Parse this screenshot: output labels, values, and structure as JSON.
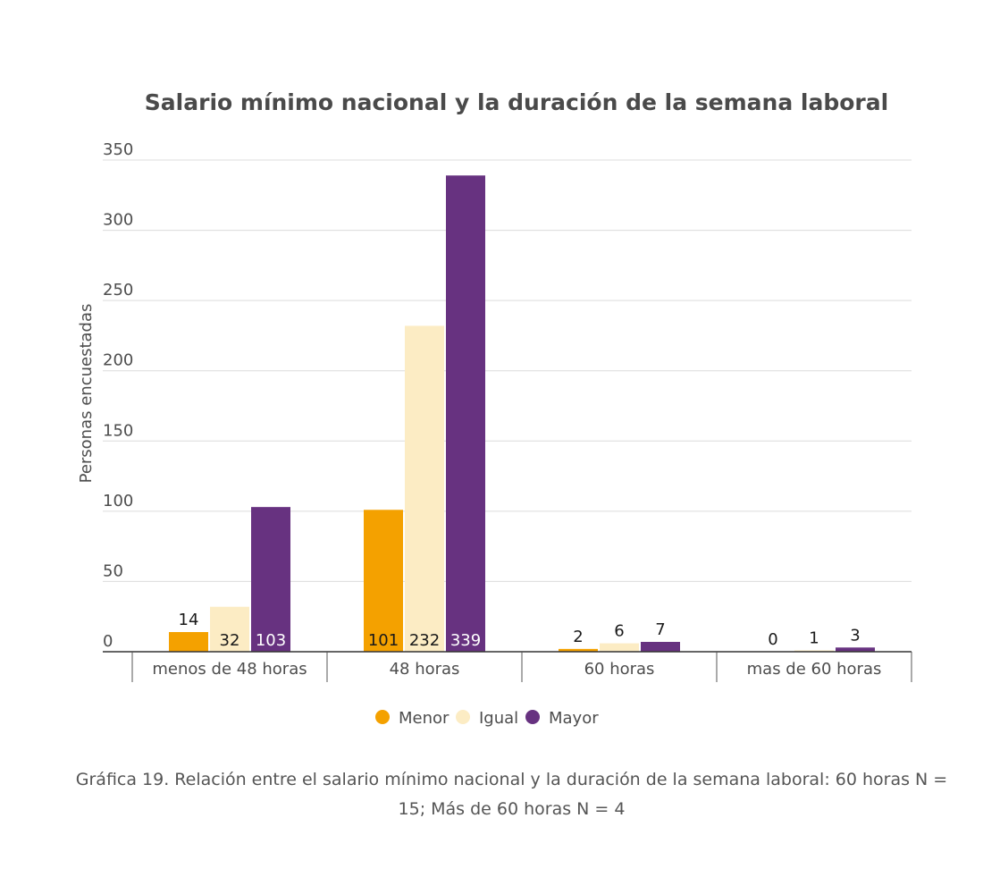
{
  "chart_data": {
    "type": "bar",
    "title": "Salario mínimo nacional y la duración de la semana laboral",
    "ylabel": "Personas encuestadas",
    "xlabel": "",
    "ylim": [
      0,
      350
    ],
    "yticks": [
      0,
      50,
      100,
      150,
      200,
      250,
      300,
      350
    ],
    "categories": [
      "menos de 48 horas",
      "48 horas",
      "60 horas",
      "mas de 60 horas"
    ],
    "series": [
      {
        "name": "Menor",
        "color": "#f4a100",
        "values": [
          14,
          101,
          2,
          0
        ]
      },
      {
        "name": "Igual",
        "color": "#fcecc4",
        "values": [
          32,
          232,
          6,
          1
        ]
      },
      {
        "name": "Mayor",
        "color": "#673280",
        "values": [
          103,
          339,
          7,
          3
        ]
      }
    ],
    "legend_position": "bottom",
    "grid": true
  },
  "caption": "Gráfica 19. Relación entre el salario mínimo nacional y la duración de la semana laboral: 60 horas N = 15; Más de 60 horas N = 4"
}
